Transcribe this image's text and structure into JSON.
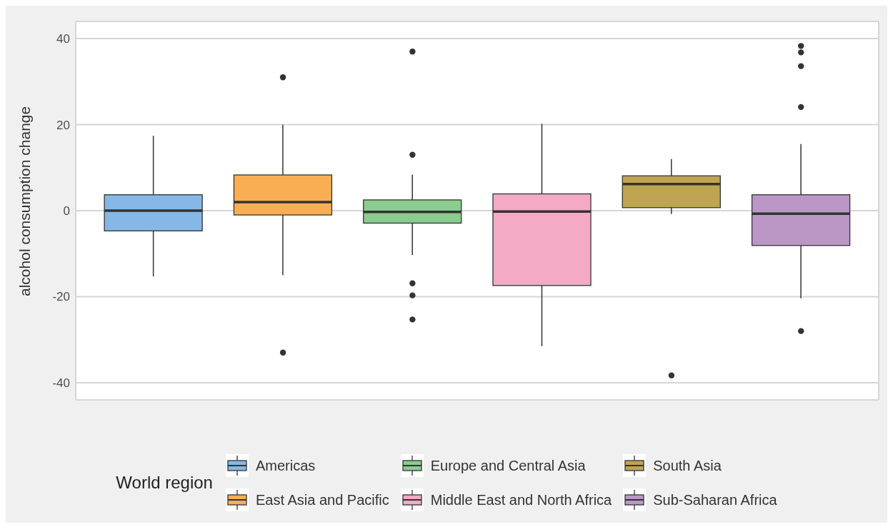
{
  "chart_data": {
    "type": "box",
    "ylabel": "alcohol consumption change",
    "legend_title": "World region",
    "categories": [
      null,
      null,
      null,
      null,
      null,
      null
    ],
    "series": [
      {
        "name": "Americas",
        "color": "#85b8e6",
        "boxes": [
          {
            "low": -15.3,
            "q1": -4.7,
            "median": 0,
            "q3": 3.7,
            "high": 17.4
          },
          null,
          null,
          null,
          null,
          null
        ]
      },
      {
        "name": "East Asia and Pacific",
        "color": "#f9ae54",
        "boxes": [
          null,
          {
            "low": -15,
            "q1": -1,
            "median": 2,
            "q3": 8.3,
            "high": 20,
            "outliers": [
              31,
              -33
            ]
          },
          null,
          null,
          null,
          null
        ]
      },
      {
        "name": "Europe and Central Asia",
        "color": "#8bcc8f",
        "boxes": [
          null,
          null,
          {
            "low": -10.3,
            "q1": -2.9,
            "median": -0.3,
            "q3": 2.5,
            "high": 8.4,
            "outliers": [
              37,
              13,
              -16.9,
              -19.7,
              -25.3
            ]
          },
          null,
          null,
          null
        ]
      },
      {
        "name": "Middle East and North Africa",
        "color": "#f4a9c7",
        "boxes": [
          null,
          null,
          null,
          {
            "low": -31.5,
            "q1": -17.4,
            "median": -0.2,
            "q3": 3.9,
            "high": 20.2
          },
          null,
          null
        ]
      },
      {
        "name": "South Asia",
        "color": "#bfa551",
        "boxes": [
          null,
          null,
          null,
          null,
          {
            "low": -0.8,
            "q1": 0.7,
            "median": 6.2,
            "q3": 8.1,
            "high": 12,
            "outliers": [
              -38.3
            ]
          },
          null
        ]
      },
      {
        "name": "Sub-Saharan Africa",
        "color": "#ba97c5",
        "boxes": [
          null,
          null,
          null,
          null,
          null,
          {
            "low": -20.4,
            "q1": -8.1,
            "median": -0.7,
            "q3": 3.7,
            "high": 15.5,
            "outliers": [
              38.3,
              36.8,
              33.6,
              24.1,
              -28
            ]
          }
        ]
      }
    ],
    "ylim": [
      -44,
      44
    ],
    "yticks": [
      -40,
      -20,
      0,
      20,
      40
    ],
    "grid": true,
    "legend": "bottom",
    "tick_labels": "y"
  }
}
